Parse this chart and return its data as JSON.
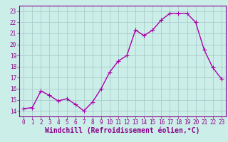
{
  "x": [
    0,
    1,
    2,
    3,
    4,
    5,
    6,
    7,
    8,
    9,
    10,
    11,
    12,
    13,
    14,
    15,
    16,
    17,
    18,
    19,
    20,
    21,
    22,
    23
  ],
  "y": [
    14.2,
    14.3,
    15.8,
    15.4,
    14.9,
    15.1,
    14.6,
    14.0,
    14.8,
    16.0,
    17.5,
    18.5,
    19.0,
    21.3,
    20.8,
    21.3,
    22.2,
    22.8,
    22.8,
    22.8,
    22.0,
    19.5,
    17.9,
    16.9
  ],
  "line_color": "#aa00aa",
  "marker_color": "#aa00aa",
  "bg_color": "#cceee8",
  "grid_color": "#aacccc",
  "xlabel": "Windchill (Refroidissement éolien,°C)",
  "xlim": [
    -0.5,
    23.5
  ],
  "ylim": [
    13.5,
    23.5
  ],
  "yticks": [
    14,
    15,
    16,
    17,
    18,
    19,
    20,
    21,
    22,
    23
  ],
  "xticks": [
    0,
    1,
    2,
    3,
    4,
    5,
    6,
    7,
    8,
    9,
    10,
    11,
    12,
    13,
    14,
    15,
    16,
    17,
    18,
    19,
    20,
    21,
    22,
    23
  ],
  "tick_color": "#880088",
  "tick_fontsize": 5.5,
  "xlabel_fontsize": 7.0,
  "linewidth": 1.0,
  "markersize": 2.5
}
